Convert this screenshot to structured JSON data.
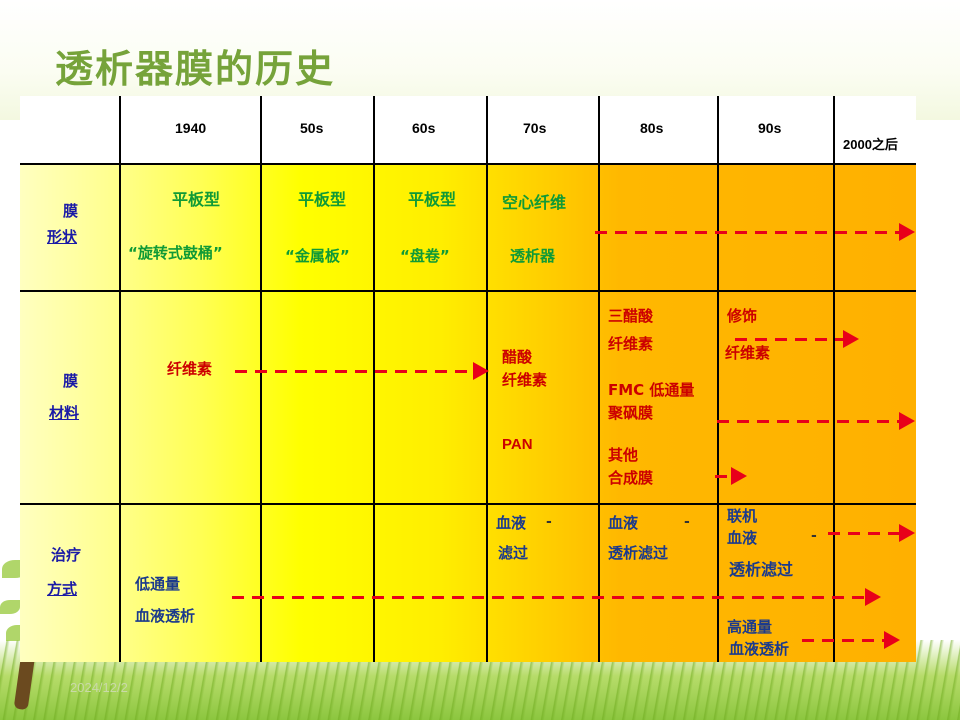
{
  "title": "透析器膜的历史",
  "years": [
    "1940",
    "50s",
    "60s",
    "70s",
    "80s",
    "90s",
    "2000之后"
  ],
  "rows": {
    "shape": {
      "label_line1": "膜",
      "label_line2": "形状"
    },
    "material": {
      "label_line1": "膜",
      "label_line2": "材料"
    },
    "therapy": {
      "label_line1": "治疗",
      "label_line2": "方式"
    }
  },
  "shape_cells": {
    "c1940_type": "平板型",
    "c1940_name": "“旋转式鼓桶”",
    "c50s_type": "平板型",
    "c50s_name": "“金属板”",
    "c60s_type": "平板型",
    "c60s_name": "“盘卷”",
    "c70s_type": "空心纤维",
    "c70s_name": "透析器"
  },
  "material_cells": {
    "c1940": "纤维素",
    "c70s_line1": "醋酸",
    "c70s_line2": "纤维素",
    "c70s_pan": "PAN",
    "c80s_a1": "三醋酸",
    "c80s_a2": "纤维素",
    "c80s_b1": "FMC 低通量",
    "c80s_b2": "聚砜膜",
    "c80s_c1": "其他",
    "c80s_c2": "合成膜",
    "c90s_a1": "修饰",
    "c90s_a2": "纤维素"
  },
  "therapy_cells": {
    "c1940_line1": "低通量",
    "c1940_line2": "血液透析",
    "c70s_line1": "血液",
    "c70s_line2": "滤过",
    "c80s_line1": "血液",
    "c80s_line2": "透析滤过",
    "c90s_a1": "联机",
    "c90s_a2": "血液",
    "c90s_a3": "透析滤过",
    "c90s_b1": "高通量",
    "c90s_b2": "血液透析",
    "dash": "-"
  },
  "footer": {
    "date": "2024/12/2"
  },
  "colors": {
    "title": "#76a33a",
    "arrow": "#e8001a"
  }
}
